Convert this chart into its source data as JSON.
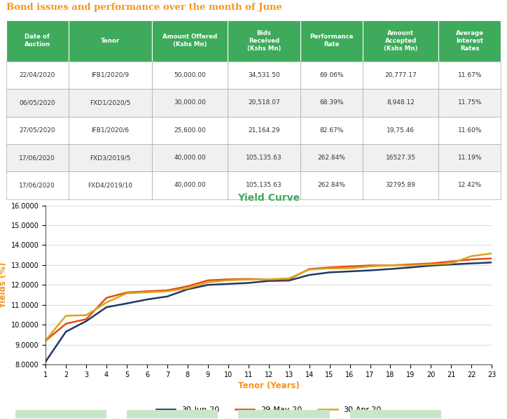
{
  "title": "Bond issues and performance over the month of June",
  "title_color": "#F7941D",
  "table_header_bg": "#3DAA5C",
  "table_header_color": "#FFFFFF",
  "table_row_bg_odd": "#FFFFFF",
  "table_row_bg_even": "#F0F0F0",
  "table_border_color": "#AAAAAA",
  "table_text_color": "#333333",
  "headers": [
    "Date of\nAuction",
    "Tenor",
    "Amount Offered\n(Kshs Mn)",
    "Bids\nReceived\n(Kshs Mn)",
    "Performance\nRate",
    "Amount\nAccepted\n(Kshs Mn)",
    "Average\nInterest\nRates"
  ],
  "rows": [
    [
      "22/04/2020",
      "IFB1/2020/9",
      "50,000.00",
      "34,531.50",
      "69.06%",
      "20,777.17",
      "11.67%"
    ],
    [
      "06/05/2020",
      "FXD1/2020/5",
      "30,000.00",
      "20,518.07",
      "68.39%",
      "8,948.12",
      "11.75%"
    ],
    [
      "27/05/2020",
      "IFB1/2020/6",
      "25,600.00",
      "21,164.29",
      "82.67%",
      "19,75.46",
      "11.60%"
    ],
    [
      "17/06/2020",
      "FXD3/2019/5",
      "40,000.00",
      "105,135.63",
      "262.84%",
      "16527.35",
      "11.19%"
    ],
    [
      "17/06/2020",
      "FXD4/2019/10",
      "40,000.00",
      "105,135.63",
      "262.84%",
      "32795.89",
      "12.42%"
    ]
  ],
  "chart_title": "Yield Curve",
  "chart_title_color": "#3DAA5C",
  "xlabel": "Tenor (Years)",
  "ylabel": "Yields (%)",
  "xlabel_color": "#F7941D",
  "ylabel_color": "#F7941D",
  "tenors": [
    1,
    2,
    3,
    4,
    5,
    6,
    7,
    8,
    9,
    10,
    11,
    12,
    13,
    14,
    15,
    16,
    17,
    18,
    19,
    20,
    21,
    22,
    23
  ],
  "jun30": [
    8.15,
    9.65,
    10.18,
    10.88,
    11.07,
    11.27,
    11.42,
    11.78,
    12.0,
    12.05,
    12.1,
    12.2,
    12.22,
    12.5,
    12.63,
    12.68,
    12.73,
    12.8,
    12.88,
    12.97,
    13.03,
    13.08,
    13.13
  ],
  "may29": [
    9.2,
    10.05,
    10.28,
    11.35,
    11.62,
    11.68,
    11.73,
    11.93,
    12.23,
    12.28,
    12.3,
    12.28,
    12.28,
    12.8,
    12.88,
    12.93,
    12.98,
    12.98,
    13.03,
    13.08,
    13.18,
    13.28,
    13.33
  ],
  "apr30": [
    9.22,
    10.45,
    10.48,
    11.12,
    11.58,
    11.63,
    11.68,
    11.83,
    12.13,
    12.23,
    12.27,
    12.28,
    12.33,
    12.77,
    12.83,
    12.83,
    12.93,
    12.98,
    12.98,
    13.03,
    13.08,
    13.45,
    13.58
  ],
  "line_colors": [
    "#1F3864",
    "#E84C0E",
    "#DAA520"
  ],
  "legend_labels": [
    "30-Jun-20",
    "29-May-20",
    "30-Apr-20"
  ],
  "ylim": [
    8.0,
    16.0
  ],
  "yticks": [
    8.0,
    9.0,
    10.0,
    11.0,
    12.0,
    13.0,
    14.0,
    15.0,
    16.0
  ],
  "ytick_labels": [
    "8.0000",
    "9.0000",
    "10.0000",
    "11.0000",
    "12.0000",
    "13.0000",
    "14.0000",
    "15.0000",
    "16.0000"
  ],
  "col_widths": [
    0.118,
    0.158,
    0.143,
    0.138,
    0.118,
    0.143,
    0.118
  ],
  "footer_color": "#C8E6C9",
  "background_color": "#FFFFFF"
}
